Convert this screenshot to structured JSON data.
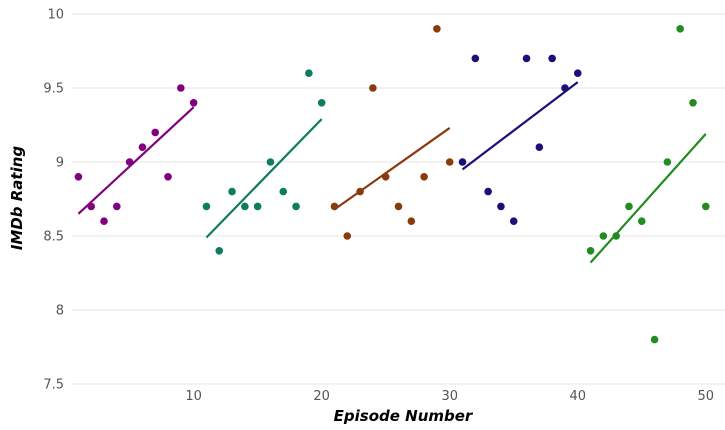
{
  "chart_data": {
    "type": "scatter",
    "xlabel": "Episode Number",
    "ylabel": "IMDb Rating",
    "xlim": [
      0.5,
      51.5
    ],
    "ylim": [
      7.5,
      10.0
    ],
    "xticks": [
      10,
      20,
      30,
      40,
      50
    ],
    "yticks": [
      7.5,
      8,
      8.5,
      9,
      9.5,
      10
    ],
    "ytick_labels": [
      "7.5",
      "8",
      "8.5",
      "9",
      "9.5",
      "10"
    ],
    "xtick_labels": [
      "10",
      "20",
      "30",
      "40",
      "50"
    ],
    "grid": "horizontal",
    "legend": "none",
    "series": [
      {
        "color": "#800080",
        "x": [
          1,
          2,
          3,
          4,
          5,
          6,
          7,
          8,
          9,
          10
        ],
        "y": [
          8.9,
          8.7,
          8.6,
          8.7,
          9.0,
          9.1,
          9.2,
          8.9,
          9.5,
          9.4
        ],
        "fit": [
          [
            1,
            8.65
          ],
          [
            10,
            9.37
          ]
        ]
      },
      {
        "color": "#0e7c61",
        "x": [
          11,
          12,
          13,
          14,
          15,
          16,
          17,
          18,
          19,
          20
        ],
        "y": [
          8.7,
          8.4,
          8.8,
          8.7,
          8.7,
          9.0,
          8.8,
          8.7,
          9.6,
          9.4
        ],
        "fit": [
          [
            11,
            8.49
          ],
          [
            20,
            9.29
          ]
        ]
      },
      {
        "color": "#8b3a0e",
        "x": [
          21,
          22,
          23,
          24,
          25,
          26,
          27,
          28,
          29,
          30
        ],
        "y": [
          8.7,
          8.5,
          8.8,
          9.5,
          8.9,
          8.7,
          8.6,
          8.9,
          9.9,
          9.0
        ],
        "fit": [
          [
            21,
            8.68
          ],
          [
            30,
            9.23
          ]
        ]
      },
      {
        "color": "#1b0f7a",
        "x": [
          31,
          32,
          33,
          34,
          35,
          36,
          37,
          38,
          39,
          40
        ],
        "y": [
          9.0,
          9.7,
          8.8,
          8.7,
          8.6,
          9.7,
          9.1,
          9.7,
          9.5,
          9.6
        ],
        "fit": [
          [
            31,
            8.95
          ],
          [
            40,
            9.54
          ]
        ]
      },
      {
        "color": "#228b22",
        "x": [
          41,
          42,
          43,
          44,
          45,
          46,
          47,
          48,
          49,
          50
        ],
        "y": [
          8.4,
          8.5,
          8.5,
          8.7,
          8.6,
          7.8,
          9.0,
          9.9,
          9.4,
          8.7
        ],
        "fit": [
          [
            41,
            8.32
          ],
          [
            50,
            9.19
          ]
        ]
      }
    ]
  }
}
